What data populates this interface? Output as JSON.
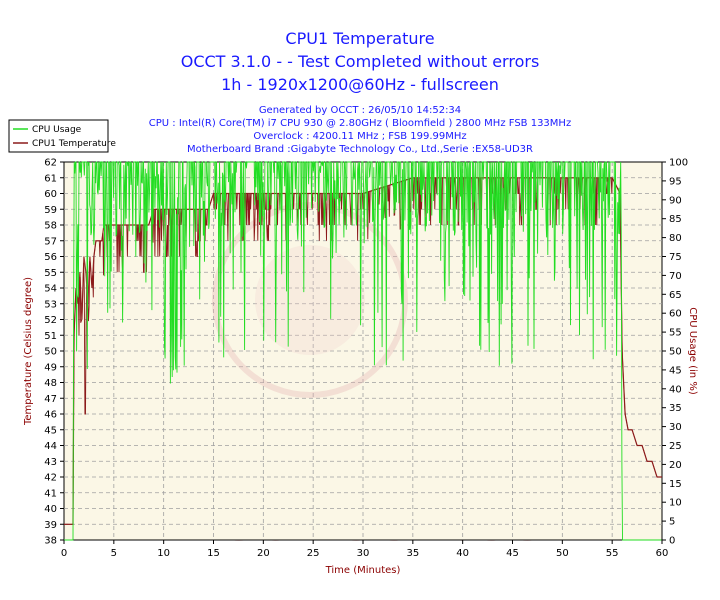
{
  "titles": {
    "line1": "CPU1 Temperature",
    "line2": "OCCT 3.1.0 -  - Test Completed without errors",
    "line3": "1h - 1920x1200@60Hz - fullscreen"
  },
  "info": {
    "generated": "Generated by OCCT : 26/05/10 14:52:34",
    "cpu": "CPU : Intel(R) Core(TM) i7 CPU 930 @ 2.80GHz ( Bloomfield ) 2800 MHz FSB 133MHz",
    "overclock": "Overclock : 4200.11 MHz ; FSB 199.99MHz",
    "motherboard": "Motherboard Brand :Gigabyte Technology Co., Ltd.,Serie :EX58-UD3R"
  },
  "legend": {
    "cpu_usage": "CPU Usage",
    "cpu_temp": "CPU1 Temperature"
  },
  "watermark": "VmodTech.com",
  "colors": {
    "usage": "#22dd22",
    "temp": "#8b1a1a",
    "title": "#1a1aff",
    "plot_bg": "#fbf7e6"
  },
  "chart_data": {
    "type": "line",
    "xlabel": "Time (Minutes)",
    "ylabel_left": "Temperature (Celsius degree)",
    "ylabel_right": "CPU Usage (in %)",
    "xlim": [
      0,
      60
    ],
    "ylim_left": [
      38,
      62
    ],
    "ylim_right": [
      0,
      100
    ],
    "x_ticks": [
      0,
      5,
      10,
      15,
      20,
      25,
      30,
      35,
      40,
      45,
      50,
      55,
      60
    ],
    "y_left_ticks": [
      38,
      39,
      40,
      41,
      42,
      43,
      44,
      45,
      46,
      47,
      48,
      49,
      50,
      51,
      52,
      53,
      54,
      55,
      56,
      57,
      58,
      59,
      60,
      61,
      62
    ],
    "y_right_ticks": [
      0,
      5,
      10,
      15,
      20,
      25,
      30,
      35,
      40,
      45,
      50,
      55,
      60,
      65,
      70,
      75,
      80,
      85,
      90,
      95,
      100
    ],
    "grid": true,
    "series": [
      {
        "name": "CPU1 Temperature",
        "axis": "left",
        "x": [
          0,
          0.9,
          1.0,
          1.2,
          1.4,
          1.6,
          1.8,
          2.0,
          2.2,
          2.4,
          2.6,
          2.8,
          3.0,
          3.2,
          3.5,
          3.8,
          4.0,
          4.5,
          5.0,
          5.5,
          6.0,
          6.5,
          7.0,
          7.5,
          8.0,
          8.5,
          9.0,
          9.5,
          10.0,
          11.0,
          12.0,
          13.0,
          14.0,
          14.5,
          15.0,
          16.0,
          17.0,
          18.0,
          19.0,
          20.0,
          25.0,
          30.0,
          35.0,
          40.0,
          45.0,
          50.0,
          55.0,
          55.8,
          56.0,
          56.3,
          56.6,
          57.0,
          57.5,
          58.0,
          58.5,
          59.0,
          59.5,
          60.0
        ],
        "y": [
          39,
          39,
          51,
          54,
          53,
          55,
          52,
          56,
          55,
          53,
          56,
          54,
          56,
          57,
          57,
          57,
          58,
          58,
          58,
          58,
          58,
          58,
          58,
          58,
          58,
          58,
          59,
          59,
          59,
          59,
          59,
          59,
          59,
          59,
          60,
          60,
          60,
          60,
          60,
          60,
          60,
          60,
          61,
          61,
          61,
          61,
          61,
          60,
          50,
          46,
          45,
          45,
          44,
          44,
          43,
          43,
          42,
          42
        ]
      },
      {
        "name": "CPU Usage",
        "axis": "right",
        "x": [
          0,
          0.9,
          1.0,
          1.5,
          2.0,
          3.0,
          4.0,
          5.0,
          6.0,
          7.0,
          8.0,
          9.0,
          10.0,
          11.0,
          12.0,
          13.0,
          14.0,
          15.0,
          20.0,
          25.0,
          30.0,
          35.0,
          40.0,
          45.0,
          50.0,
          55.0,
          55.9,
          56.0,
          60.0
        ],
        "y": [
          0,
          0,
          100,
          100,
          100,
          100,
          100,
          100,
          100,
          100,
          100,
          100,
          100,
          100,
          100,
          100,
          100,
          100,
          100,
          100,
          100,
          100,
          100,
          100,
          100,
          100,
          100,
          0,
          0
        ]
      }
    ]
  }
}
